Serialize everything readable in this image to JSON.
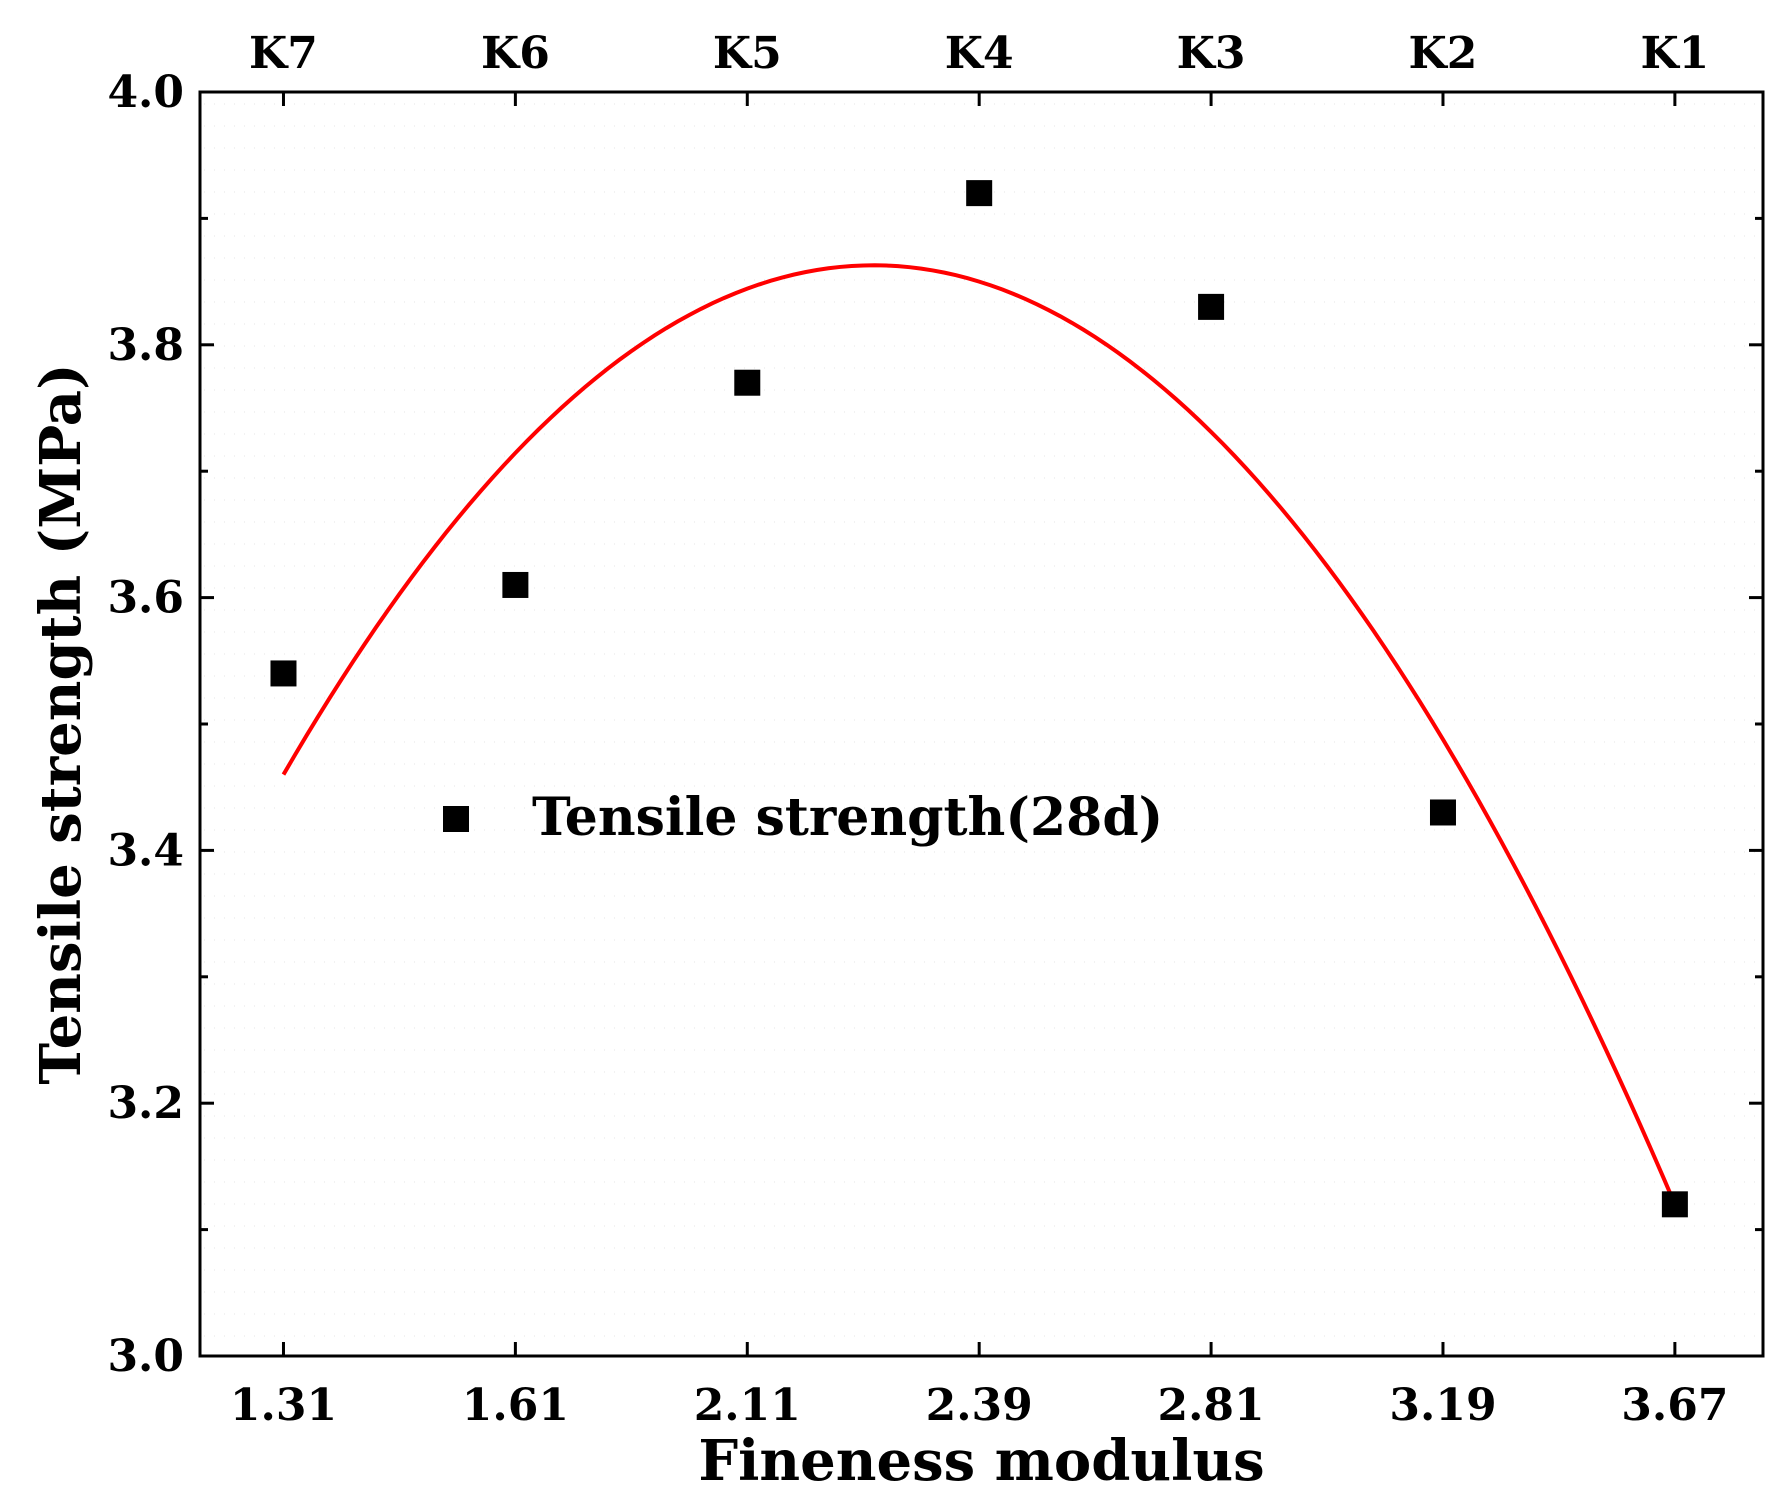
{
  "chart_data": {
    "type": "scatter",
    "title": "",
    "xlabel": "Fineness modulus",
    "ylabel": "Tensile strength (MPa)",
    "x_tick_labels": [
      "1.31",
      "1.61",
      "2.11",
      "2.39",
      "2.81",
      "3.19",
      "3.67"
    ],
    "top_tick_labels": [
      "K7",
      "K6",
      "K5",
      "K4",
      "K3",
      "K2",
      "K1"
    ],
    "x_positions": [
      1,
      2,
      3,
      4,
      5,
      6,
      7
    ],
    "xlim": [
      0.64,
      7.38
    ],
    "ylim": [
      3.0,
      4.0
    ],
    "y_ticks": [
      3.0,
      3.2,
      3.4,
      3.6,
      3.8,
      4.0
    ],
    "y_tick_labels": [
      "3.0",
      "3.2",
      "3.4",
      "3.6",
      "3.8",
      "4.0"
    ],
    "series": [
      {
        "name": "Tensile strength(28d)",
        "marker": "square",
        "color": "#000000",
        "values": [
          3.54,
          3.61,
          3.77,
          3.92,
          3.83,
          3.43,
          3.12
        ]
      }
    ],
    "fit_curve": {
      "type": "polynomial-2",
      "color": "#ff0000",
      "points": [
        {
          "x": 1.0,
          "y": 3.46
        },
        {
          "x": 4.0,
          "y": 3.85
        },
        {
          "x": 7.0,
          "y": 3.12
        }
      ]
    },
    "legend": {
      "position": "center-left",
      "label": "Tensile strength(28d)"
    }
  }
}
